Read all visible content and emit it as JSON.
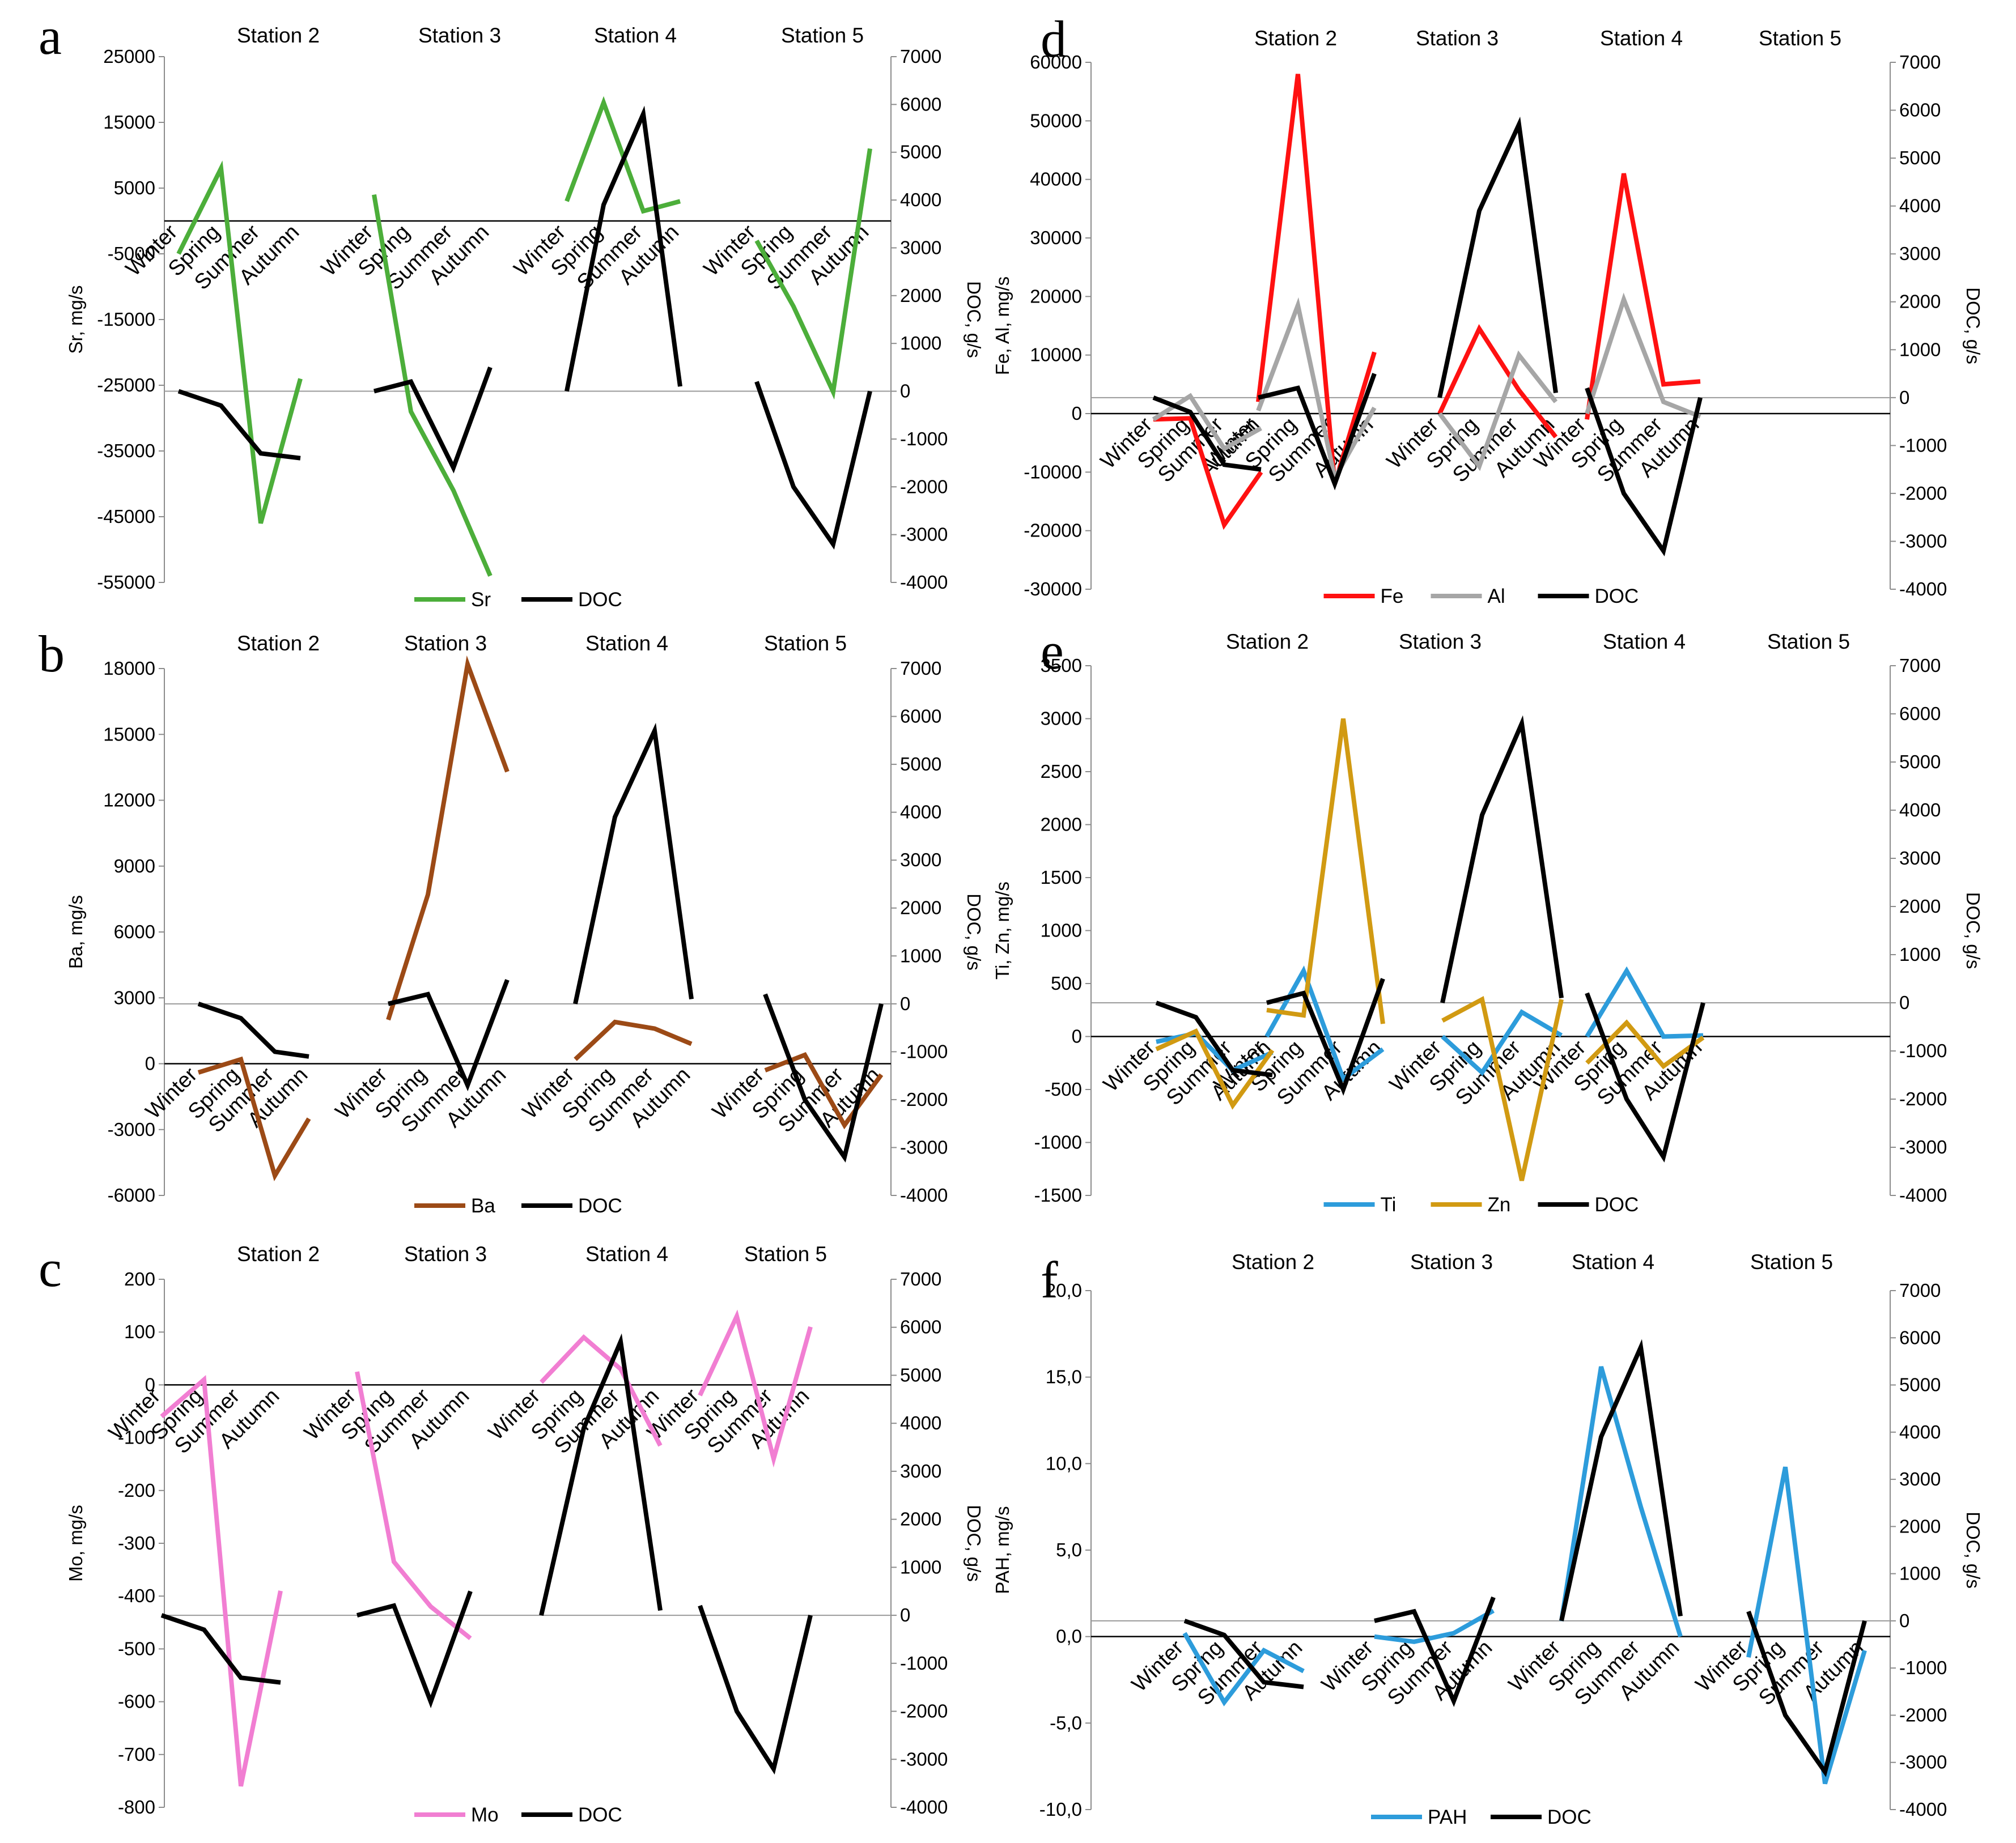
{
  "chart_data": [
    {
      "type": "line",
      "letter": "a",
      "stations": [
        "Station 2",
        "Station 3",
        "Station 4",
        "Station 5"
      ],
      "seasons": [
        "Winter",
        "Spring",
        "Summer",
        "Autumn"
      ],
      "left_axis": {
        "label": "Sr, mg/s",
        "min": -55000,
        "max": 25000,
        "step": 10000,
        "decimal_comma": false
      },
      "right_axis": {
        "label": "DOC, g/s",
        "min": -4000,
        "max": 7000,
        "step": 1000
      },
      "series": [
        {
          "name": "Sr",
          "axis": "left",
          "color": "#4cae3a",
          "values": [
            [
              -5000,
              8000,
              -46000,
              -24000
            ],
            [
              4000,
              -29000,
              -41000,
              -54000
            ],
            [
              3000,
              18000,
              1500,
              3000
            ],
            [
              -3000,
              -13000,
              -26000,
              11000
            ]
          ]
        },
        {
          "name": "DOC",
          "axis": "right",
          "color": "#000000",
          "values": [
            [
              0,
              -300,
              -1300,
              -1400
            ],
            [
              0,
              200,
              -1600,
              500
            ],
            [
              0,
              3900,
              5800,
              100
            ],
            [
              200,
              -2000,
              -3200,
              0
            ]
          ]
        }
      ],
      "legend": [
        "Sr",
        "DOC"
      ]
    },
    {
      "type": "line",
      "letter": "b",
      "stations": [
        "Station 2",
        "Station 3",
        "Station 4",
        "Station 5"
      ],
      "seasons": [
        "Winter",
        "Spring",
        "Summer",
        "Autumn"
      ],
      "left_axis": {
        "label": "Ba, mg/s",
        "min": -6000,
        "max": 18000,
        "step": 3000,
        "decimal_comma": false
      },
      "right_axis": {
        "label": "DOC, g/s",
        "min": -4000,
        "max": 7000,
        "step": 1000
      },
      "series": [
        {
          "name": "Ba",
          "axis": "left",
          "color": "#9c4a16",
          "values": [
            [
              -400,
              200,
              -5100,
              -2500
            ],
            [
              2000,
              7700,
              18200,
              13300
            ],
            [
              200,
              1900,
              1600,
              900
            ],
            [
              -300,
              400,
              -2800,
              -500
            ]
          ]
        },
        {
          "name": "DOC",
          "axis": "right",
          "color": "#000000",
          "values": [
            [
              0,
              -300,
              -1000,
              -1100
            ],
            [
              0,
              200,
              -1700,
              500
            ],
            [
              0,
              3900,
              5700,
              100
            ],
            [
              200,
              -2000,
              -3200,
              0
            ]
          ]
        }
      ],
      "legend": [
        "Ba",
        "DOC"
      ]
    },
    {
      "type": "line",
      "letter": "c",
      "stations": [
        "Station 2",
        "Station 3",
        "Station 4",
        "Station 5"
      ],
      "seasons": [
        "Winter",
        "Spring",
        "Summer",
        "Autumn"
      ],
      "left_axis": {
        "label": "Mo, mg/s",
        "min": -800,
        "max": 200,
        "step": 100,
        "decimal_comma": false
      },
      "right_axis": {
        "label": "DOC, g/s",
        "min": -4000,
        "max": 7000,
        "step": 1000
      },
      "series": [
        {
          "name": "Mo",
          "axis": "left",
          "color": "#f17ed2",
          "values": [
            [
              -60,
              10,
              -760,
              -390
            ],
            [
              25,
              -335,
              -420,
              -480
            ],
            [
              5,
              90,
              30,
              -115
            ],
            [
              -20,
              130,
              -140,
              110
            ]
          ]
        },
        {
          "name": "DOC",
          "axis": "right",
          "color": "#000000",
          "values": [
            [
              0,
              -300,
              -1300,
              -1400
            ],
            [
              0,
              200,
              -1800,
              500
            ],
            [
              0,
              3900,
              5700,
              100
            ],
            [
              200,
              -2000,
              -3200,
              0
            ]
          ]
        }
      ],
      "legend": [
        "Mo",
        "DOC"
      ]
    },
    {
      "type": "line",
      "letter": "d",
      "stations": [
        "Station 2",
        "Station 3",
        "Station 4",
        "Station 5"
      ],
      "seasons": [
        "Winter",
        "Spring",
        "Summer",
        "Autumn"
      ],
      "left_axis": {
        "label": "Fe, Al, mg/s",
        "min": -30000,
        "max": 60000,
        "step": 10000,
        "decimal_comma": false
      },
      "right_axis": {
        "label": "DOC, g/s",
        "min": -4000,
        "max": 7000,
        "step": 1000
      },
      "series": [
        {
          "name": "Fe",
          "axis": "left",
          "color": "#ff1111",
          "values": [
            [
              -1000,
              -800,
              -19000,
              -10000
            ],
            [
              2000,
              58000,
              -12000,
              10500
            ],
            [
              0,
              14500,
              4000,
              -4000
            ],
            [
              -1000,
              41000,
              5000,
              5500
            ]
          ]
        },
        {
          "name": "Al",
          "axis": "left",
          "color": "#a6a6a6",
          "values": [
            [
              -1000,
              3000,
              -6000,
              -2500
            ],
            [
              500,
              18500,
              -11000,
              1000
            ],
            [
              0,
              -9000,
              10000,
              2000
            ],
            [
              0,
              19500,
              2000,
              -500
            ]
          ]
        },
        {
          "name": "DOC",
          "axis": "right",
          "color": "#000000",
          "values": [
            [
              0,
              -300,
              -1400,
              -1500
            ],
            [
              0,
              200,
              -1800,
              500
            ],
            [
              0,
              3900,
              5700,
              100
            ],
            [
              200,
              -2000,
              -3200,
              0
            ]
          ]
        }
      ],
      "legend": [
        "Fe",
        "Al",
        "DOC"
      ]
    },
    {
      "type": "line",
      "letter": "e",
      "stations": [
        "Station 2",
        "Station 3",
        "Station 4",
        "Station 5"
      ],
      "seasons": [
        "Winter",
        "Spring",
        "Summer",
        "Autumn"
      ],
      "left_axis": {
        "label": "Ti, Zn, mg/s",
        "min": -1500,
        "max": 3500,
        "step": 500,
        "decimal_comma": false
      },
      "right_axis": {
        "label": "DOC, g/s",
        "min": -4000,
        "max": 7000,
        "step": 1000
      },
      "series": [
        {
          "name": "Ti",
          "axis": "left",
          "color": "#2d9cdb",
          "values": [
            [
              -50,
              30,
              -320,
              -150
            ],
            [
              0,
              620,
              -400,
              -120
            ],
            [
              0,
              -340,
              230,
              10
            ],
            [
              0,
              620,
              0,
              10
            ]
          ]
        },
        {
          "name": "Zn",
          "axis": "left",
          "color": "#d19a12",
          "values": [
            [
              -120,
              50,
              -650,
              -130
            ],
            [
              250,
              200,
              3000,
              120
            ],
            [
              150,
              350,
              -1360,
              350
            ],
            [
              -250,
              130,
              -280,
              -10
            ]
          ]
        },
        {
          "name": "DOC",
          "axis": "right",
          "color": "#000000",
          "values": [
            [
              0,
              -300,
              -1400,
              -1500
            ],
            [
              0,
              200,
              -1800,
              500
            ],
            [
              0,
              3900,
              5800,
              100
            ],
            [
              200,
              -2000,
              -3200,
              0
            ]
          ]
        }
      ],
      "legend": [
        "Ti",
        "Zn",
        "DOC"
      ]
    },
    {
      "type": "line",
      "letter": "f",
      "stations": [
        "Station 2",
        "Station 3",
        "Station 4",
        "Station 5"
      ],
      "seasons": [
        "Winter",
        "Spring",
        "Summer",
        "Autumn"
      ],
      "left_axis": {
        "label": "PAH, mg/s",
        "min": -10,
        "max": 20,
        "step": 5,
        "decimal_comma": true
      },
      "right_axis": {
        "label": "DOC, g/s",
        "min": -4000,
        "max": 7000,
        "step": 1000
      },
      "series": [
        {
          "name": "PAH",
          "axis": "left",
          "color": "#2d9cdb",
          "values": [
            [
              0.2,
              -3.8,
              -0.8,
              -2
            ],
            [
              0,
              -0.3,
              0.2,
              1.5
            ],
            [
              0.9,
              15.6,
              7.5,
              0
            ],
            [
              -1.2,
              9.8,
              -8.5,
              -0.8
            ]
          ]
        },
        {
          "name": "DOC",
          "axis": "right",
          "color": "#000000",
          "values": [
            [
              0,
              -300,
              -1300,
              -1400
            ],
            [
              0,
              200,
              -1700,
              500
            ],
            [
              0,
              3900,
              5800,
              100
            ],
            [
              200,
              -2000,
              -3200,
              0
            ]
          ]
        }
      ],
      "legend": [
        "PAH",
        "DOC"
      ]
    }
  ]
}
